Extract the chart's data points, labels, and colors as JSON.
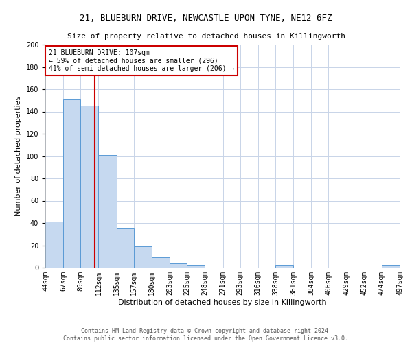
{
  "title1": "21, BLUEBURN DRIVE, NEWCASTLE UPON TYNE, NE12 6FZ",
  "title2": "Size of property relative to detached houses in Killingworth",
  "xlabel": "Distribution of detached houses by size in Killingworth",
  "ylabel": "Number of detached properties",
  "bin_labels": [
    "44sqm",
    "67sqm",
    "89sqm",
    "112sqm",
    "135sqm",
    "157sqm",
    "180sqm",
    "203sqm",
    "225sqm",
    "248sqm",
    "271sqm",
    "293sqm",
    "316sqm",
    "338sqm",
    "361sqm",
    "384sqm",
    "406sqm",
    "429sqm",
    "452sqm",
    "474sqm",
    "497sqm"
  ],
  "bin_edges": [
    44,
    67,
    89,
    112,
    135,
    157,
    180,
    203,
    225,
    248,
    271,
    293,
    316,
    338,
    361,
    384,
    406,
    429,
    452,
    474,
    497
  ],
  "bar_heights": [
    41,
    151,
    145,
    101,
    35,
    19,
    9,
    4,
    2,
    0,
    0,
    0,
    0,
    2,
    0,
    0,
    0,
    0,
    0,
    2
  ],
  "bar_color": "#c6d9f0",
  "bar_edge_color": "#5b9bd5",
  "grid_color": "#c8d4e8",
  "red_line_x": 107,
  "annotation_text": "21 BLUEBURN DRIVE: 107sqm\n← 59% of detached houses are smaller (296)\n41% of semi-detached houses are larger (206) →",
  "annotation_box_color": "#ffffff",
  "annotation_box_edge": "#cc0000",
  "footer": "Contains HM Land Registry data © Crown copyright and database right 2024.\nContains public sector information licensed under the Open Government Licence v3.0.",
  "ylim": [
    0,
    200
  ],
  "yticks": [
    0,
    20,
    40,
    60,
    80,
    100,
    120,
    140,
    160,
    180,
    200
  ],
  "title1_fontsize": 9,
  "title2_fontsize": 8,
  "ylabel_fontsize": 8,
  "xlabel_fontsize": 8,
  "tick_fontsize": 7,
  "footer_fontsize": 6,
  "annotation_fontsize": 7
}
